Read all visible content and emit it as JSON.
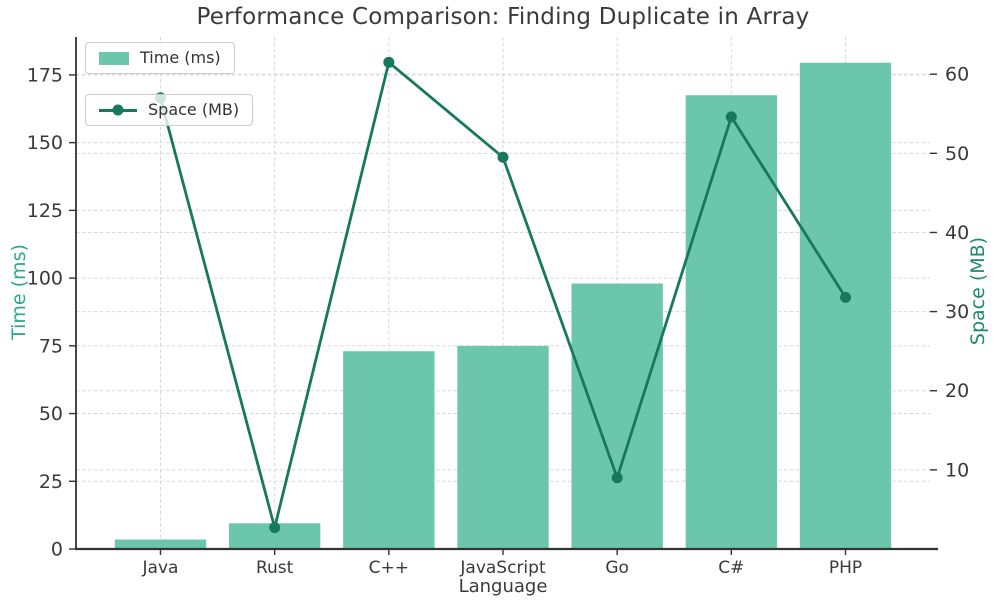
{
  "chart_data": {
    "type": "bar+line dual-axis",
    "title": "Performance Comparison: Finding Duplicate in Array",
    "xlabel": "Language",
    "ylabel_left": "Time (ms)",
    "ylabel_right": "Space (MB)",
    "categories": [
      "Java",
      "Rust",
      "C++",
      "JavaScript",
      "Go",
      "C#",
      "PHP"
    ],
    "series": [
      {
        "name": "Time (ms)",
        "type": "bar",
        "axis": "left",
        "values": [
          3.5,
          9.5,
          73,
          75,
          98,
          167.5,
          179.5
        ],
        "color": "#6bc6ac"
      },
      {
        "name": "Space (MB)",
        "type": "line",
        "axis": "right",
        "values": [
          57,
          2.7,
          61.5,
          49.5,
          9,
          54.6,
          31.8
        ],
        "color": "#17795c"
      }
    ],
    "yticks_left": [
      0,
      25,
      50,
      75,
      100,
      125,
      150,
      175
    ],
    "yticks_right": [
      10,
      20,
      30,
      40,
      50,
      60
    ],
    "ylim_left": [
      0,
      189
    ],
    "ylim_right": [
      0,
      64.7
    ],
    "xlim": [
      -0.74,
      6.74
    ],
    "bar_width_units": 0.8,
    "grid": true,
    "legend_position": "upper-left",
    "colors": {
      "bar": "#6bc6ac",
      "line": "#17795c",
      "ylabel_left": "#2aa98c",
      "ylabel_right": "#1e8a6d",
      "title": "#3a3a3a",
      "tick_label": "#3a3a3a",
      "grid": "#d7d7d7",
      "spine": "#333333"
    }
  }
}
